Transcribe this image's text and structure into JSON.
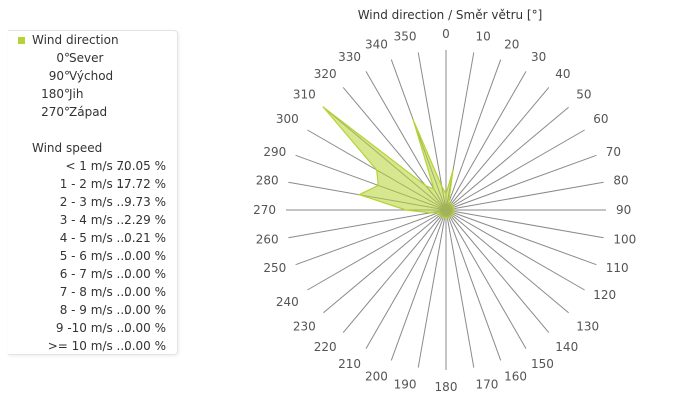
{
  "chart_data": {
    "type": "polar-area",
    "title": "Wind direction / Směr větru [°]",
    "angle_ticks": [
      "0",
      "10",
      "20",
      "30",
      "40",
      "50",
      "60",
      "70",
      "80",
      "90",
      "100",
      "110",
      "120",
      "130",
      "140",
      "150",
      "160",
      "170",
      "180",
      "190",
      "200",
      "210",
      "220",
      "230",
      "240",
      "250",
      "260",
      "270",
      "280",
      "290",
      "300",
      "310",
      "320",
      "330",
      "340",
      "350"
    ],
    "series": [
      {
        "name": "Wind direction",
        "color": "#b5d334",
        "direction_deg": [
          0,
          10,
          20,
          30,
          40,
          50,
          60,
          70,
          80,
          90,
          100,
          110,
          120,
          130,
          140,
          150,
          160,
          170,
          180,
          190,
          200,
          210,
          220,
          230,
          240,
          250,
          260,
          270,
          280,
          290,
          300,
          310,
          320,
          330,
          340,
          350
        ],
        "values": [
          0.2,
          0.5,
          0.1,
          0.1,
          0.1,
          0.1,
          0.1,
          0.1,
          0.1,
          0.1,
          0.1,
          0.1,
          0.1,
          0.1,
          0.1,
          0.1,
          0.1,
          0.1,
          0.1,
          0.1,
          0.1,
          0.1,
          0.1,
          0.1,
          0.1,
          0.1,
          0.2,
          0.5,
          1.1,
          0.9,
          1.0,
          2.0,
          0.4,
          0.3,
          1.2,
          0.3
        ],
        "rmax": 2.0
      }
    ]
  },
  "legend": {
    "series_label": "Wind direction",
    "directions": [
      {
        "deg": "0°",
        "name": "Sever"
      },
      {
        "deg": "90°",
        "name": "Východ"
      },
      {
        "deg": "180°",
        "name": "Jih"
      },
      {
        "deg": "270°",
        "name": "Západ"
      }
    ],
    "speed_title": "Wind speed",
    "speeds": [
      {
        "range": "< 1 m/s ...",
        "pct": "70.05 %"
      },
      {
        "range": "1 - 2 m/s ...",
        "pct": "17.72 %"
      },
      {
        "range": "2 - 3 m/s ...",
        "pct": "9.73 %"
      },
      {
        "range": "3 - 4 m/s ...",
        "pct": "2.29 %"
      },
      {
        "range": "4 - 5 m/s ...",
        "pct": "0.21 %"
      },
      {
        "range": "5 - 6 m/s ...",
        "pct": "0.00 %"
      },
      {
        "range": "6 - 7 m/s ...",
        "pct": "0.00 %"
      },
      {
        "range": "7 - 8 m/s ...",
        "pct": "0.00 %"
      },
      {
        "range": "8 - 9 m/s ...",
        "pct": "0.00 %"
      },
      {
        "range": "9 -10 m/s ...",
        "pct": "0.00 %"
      },
      {
        "range": ">= 10 m/s ...",
        "pct": "0.00 %"
      }
    ]
  }
}
